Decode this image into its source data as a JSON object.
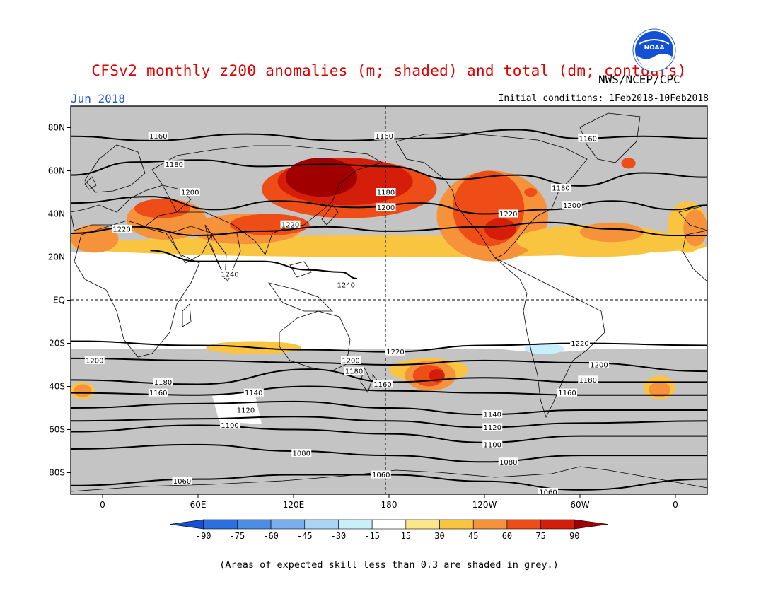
{
  "title": "CFSv2 monthly z200 anomalies (m; shaded) and total (dm; contours)",
  "agency": "NWS/NCEP/CPC",
  "logo_text": "NOAA",
  "month": "Jun 2018",
  "initial_conditions": "Initial conditions: 1Feb2018-10Feb2018",
  "footnote": "(Areas of expected skill less than 0.3 are shaded in grey.)",
  "lat_labels": [
    "80N",
    "60N",
    "40N",
    "20N",
    "EQ",
    "20S",
    "40S",
    "60S",
    "80S"
  ],
  "lon_labels": [
    "0",
    "60E",
    "120E",
    "180",
    "120W",
    "60W",
    "0"
  ],
  "colorbar": {
    "labels": [
      "-90",
      "-75",
      "-60",
      "-45",
      "-30",
      "-15",
      "15",
      "30",
      "45",
      "60",
      "75",
      "90"
    ],
    "colors": [
      "#1450d2",
      "#2c6fe0",
      "#4a8ee8",
      "#78b0ef",
      "#a8d6f4",
      "#c8f0fa",
      "#ffffff",
      "#fde68a",
      "#f9c440",
      "#f6923a",
      "#ef4d18",
      "#d41e0a",
      "#a00000"
    ]
  },
  "colors": {
    "grey_skill": "#c4c4c4",
    "land_outline": "#000000",
    "contour": "#000000"
  },
  "contours": [
    {
      "label": "1160",
      "points": [
        [
          -20,
          76
        ],
        [
          30,
          74
        ],
        [
          90,
          77
        ],
        [
          150,
          74
        ],
        [
          200,
          75
        ],
        [
          260,
          79
        ],
        [
          300,
          75
        ],
        [
          340,
          76
        ],
        [
          380,
          75
        ]
      ]
    },
    {
      "label": "1180",
      "points": [
        [
          -20,
          58
        ],
        [
          20,
          64
        ],
        [
          60,
          65
        ],
        [
          100,
          62
        ],
        [
          140,
          63
        ],
        [
          180,
          62
        ],
        [
          220,
          56
        ],
        [
          260,
          58
        ],
        [
          300,
          53
        ],
        [
          340,
          59
        ],
        [
          380,
          57
        ]
      ]
    },
    {
      "label": "1200",
      "points": [
        [
          -20,
          45
        ],
        [
          30,
          48
        ],
        [
          70,
          42
        ],
        [
          110,
          46
        ],
        [
          160,
          43
        ],
        [
          200,
          45
        ],
        [
          240,
          40
        ],
        [
          280,
          42
        ],
        [
          320,
          46
        ],
        [
          360,
          42
        ],
        [
          380,
          44
        ]
      ]
    },
    {
      "label": "1220",
      "points": [
        [
          -20,
          31
        ],
        [
          20,
          34
        ],
        [
          60,
          30
        ],
        [
          100,
          32
        ],
        [
          140,
          34
        ],
        [
          180,
          32
        ],
        [
          240,
          34
        ],
        [
          280,
          36
        ],
        [
          320,
          33
        ],
        [
          360,
          30
        ],
        [
          380,
          30
        ]
      ]
    },
    {
      "label": "1240",
      "points": [
        [
          30,
          23
        ],
        [
          60,
          18
        ],
        [
          100,
          18
        ],
        [
          130,
          14
        ],
        [
          150,
          13
        ],
        [
          160,
          10
        ]
      ]
    },
    {
      "label": "1220",
      "points": [
        [
          -20,
          -19
        ],
        [
          60,
          -21
        ],
        [
          130,
          -23
        ],
        [
          180,
          -24
        ],
        [
          240,
          -21
        ],
        [
          300,
          -20
        ],
        [
          380,
          -21
        ]
      ]
    },
    {
      "label": "1200",
      "points": [
        [
          -20,
          -27
        ],
        [
          60,
          -28
        ],
        [
          130,
          -29
        ],
        [
          180,
          -30
        ],
        [
          240,
          -28
        ],
        [
          300,
          -29
        ],
        [
          380,
          -33
        ]
      ]
    },
    {
      "label": "1180",
      "points": [
        [
          -20,
          -37
        ],
        [
          60,
          -39
        ],
        [
          130,
          -32
        ],
        [
          180,
          -38
        ],
        [
          240,
          -36
        ],
        [
          300,
          -38
        ],
        [
          380,
          -38
        ]
      ]
    },
    {
      "label": "1160",
      "points": [
        [
          -20,
          -43
        ],
        [
          60,
          -44
        ],
        [
          130,
          -40
        ],
        [
          180,
          -42
        ],
        [
          240,
          -43
        ],
        [
          300,
          -44
        ],
        [
          380,
          -44
        ]
      ]
    },
    {
      "label": "1140",
      "points": [
        [
          -20,
          -50
        ],
        [
          60,
          -48
        ],
        [
          120,
          -47
        ],
        [
          180,
          -50
        ],
        [
          240,
          -53
        ],
        [
          300,
          -51
        ],
        [
          380,
          -51
        ]
      ]
    },
    {
      "label": "1120",
      "points": [
        [
          -20,
          -56
        ],
        [
          60,
          -55
        ],
        [
          120,
          -54
        ],
        [
          180,
          -56
        ],
        [
          240,
          -59
        ],
        [
          300,
          -57
        ],
        [
          380,
          -56
        ]
      ]
    },
    {
      "label": "1100",
      "points": [
        [
          -20,
          -61
        ],
        [
          60,
          -58
        ],
        [
          120,
          -60
        ],
        [
          180,
          -62
        ],
        [
          240,
          -66
        ],
        [
          300,
          -63
        ],
        [
          380,
          -63
        ]
      ]
    },
    {
      "label": "1080",
      "points": [
        [
          -20,
          -69
        ],
        [
          60,
          -67
        ],
        [
          120,
          -70
        ],
        [
          180,
          -72
        ],
        [
          240,
          -75
        ],
        [
          300,
          -72
        ],
        [
          380,
          -72
        ]
      ]
    },
    {
      "label": "1060",
      "points": [
        [
          -20,
          -86
        ],
        [
          60,
          -83
        ],
        [
          120,
          -81
        ],
        [
          180,
          -81
        ],
        [
          240,
          -84
        ],
        [
          300,
          -88
        ],
        [
          380,
          -83
        ]
      ]
    }
  ],
  "contour_labels": [
    {
      "text": "1160",
      "lon": 35,
      "lat": 76
    },
    {
      "text": "1160",
      "lon": 177,
      "lat": 76
    },
    {
      "text": "1160",
      "lon": 305,
      "lat": 75
    },
    {
      "text": "1180",
      "lon": 45,
      "lat": 63
    },
    {
      "text": "1180",
      "lon": 178,
      "lat": 50
    },
    {
      "text": "1180",
      "lon": 288,
      "lat": 52
    },
    {
      "text": "1200",
      "lon": 55,
      "lat": 50
    },
    {
      "text": "1200",
      "lon": 178,
      "lat": 43
    },
    {
      "text": "1200",
      "lon": 295,
      "lat": 44
    },
    {
      "text": "1220",
      "lon": 12,
      "lat": 33
    },
    {
      "text": "1220",
      "lon": 118,
      "lat": 35
    },
    {
      "text": "1220",
      "lon": 255,
      "lat": 40
    },
    {
      "text": "1240",
      "lon": 80,
      "lat": 12
    },
    {
      "text": "1240",
      "lon": 153,
      "lat": 7
    },
    {
      "text": "1220",
      "lon": 184,
      "lat": -24
    },
    {
      "text": "1220",
      "lon": 300,
      "lat": -20
    },
    {
      "text": "1200",
      "lon": -5,
      "lat": -28
    },
    {
      "text": "1200",
      "lon": 156,
      "lat": -28
    },
    {
      "text": "1200",
      "lon": 312,
      "lat": -30
    },
    {
      "text": "1180",
      "lon": 158,
      "lat": -33
    },
    {
      "text": "1180",
      "lon": 38,
      "lat": -38
    },
    {
      "text": "1180",
      "lon": 305,
      "lat": -37
    },
    {
      "text": "1160",
      "lon": 35,
      "lat": -43
    },
    {
      "text": "1160",
      "lon": 176,
      "lat": -39
    },
    {
      "text": "1160",
      "lon": 292,
      "lat": -43
    },
    {
      "text": "1140",
      "lon": 95,
      "lat": -43
    },
    {
      "text": "1140",
      "lon": 245,
      "lat": -53
    },
    {
      "text": "1120",
      "lon": 90,
      "lat": -51
    },
    {
      "text": "1120",
      "lon": 245,
      "lat": -59
    },
    {
      "text": "1100",
      "lon": 80,
      "lat": -58
    },
    {
      "text": "1100",
      "lon": 245,
      "lat": -67
    },
    {
      "text": "1080",
      "lon": 125,
      "lat": -71
    },
    {
      "text": "1080",
      "lon": 255,
      "lat": -75
    },
    {
      "text": "1060",
      "lon": 175,
      "lat": -81
    },
    {
      "text": "1060",
      "lon": 50,
      "lat": -84
    },
    {
      "text": "1060",
      "lon": 280,
      "lat": -89
    }
  ],
  "anomaly_blobs": [
    {
      "value": 30,
      "lon": [
        -20,
        380
      ],
      "lat": [
        20,
        30
      ]
    },
    {
      "value": 45,
      "lon": [
        -20,
        10
      ],
      "lat": [
        22,
        35
      ]
    },
    {
      "value": 30,
      "lon": [
        355,
        380
      ],
      "lat": [
        22,
        46
      ]
    },
    {
      "value": 45,
      "lon": [
        365,
        380
      ],
      "lat": [
        25,
        42
      ]
    },
    {
      "value": 45,
      "lon": [
        15,
        65
      ],
      "lat": [
        28,
        47
      ]
    },
    {
      "value": 60,
      "lon": [
        20,
        55
      ],
      "lat": [
        38,
        47
      ]
    },
    {
      "value": 45,
      "lon": [
        55,
        125
      ],
      "lat": [
        26,
        40
      ]
    },
    {
      "value": 60,
      "lon": [
        80,
        130
      ],
      "lat": [
        30,
        40
      ]
    },
    {
      "value": 60,
      "lon": [
        100,
        210
      ],
      "lat": [
        38,
        65
      ]
    },
    {
      "value": 75,
      "lon": [
        110,
        195
      ],
      "lat": [
        44,
        66
      ]
    },
    {
      "value": 90,
      "lon": [
        115,
        160
      ],
      "lat": [
        48,
        66
      ]
    },
    {
      "value": 45,
      "lon": [
        210,
        280
      ],
      "lat": [
        18,
        60
      ]
    },
    {
      "value": 60,
      "lon": [
        220,
        265
      ],
      "lat": [
        25,
        60
      ]
    },
    {
      "value": 75,
      "lon": [
        240,
        260
      ],
      "lat": [
        28,
        38
      ]
    },
    {
      "value": 30,
      "lon": [
        260,
        360
      ],
      "lat": [
        20,
        35
      ]
    },
    {
      "value": 45,
      "lon": [
        300,
        340
      ],
      "lat": [
        27,
        36
      ]
    },
    {
      "value": 60,
      "lon": [
        265,
        273
      ],
      "lat": [
        48,
        52
      ]
    },
    {
      "value": 60,
      "lon": [
        326,
        335
      ],
      "lat": [
        61,
        66
      ]
    },
    {
      "value": 30,
      "lon": [
        65,
        125
      ],
      "lat": [
        -25,
        -19
      ]
    },
    {
      "value": 30,
      "lon": [
        180,
        230
      ],
      "lat": [
        -38,
        -27
      ]
    },
    {
      "value": 45,
      "lon": [
        190,
        222
      ],
      "lat": [
        -42,
        -28
      ]
    },
    {
      "value": 60,
      "lon": [
        195,
        215
      ],
      "lat": [
        -40,
        -30
      ]
    },
    {
      "value": 75,
      "lon": [
        205,
        215
      ],
      "lat": [
        -38,
        -32
      ]
    },
    {
      "value": 30,
      "lon": [
        -20,
        -5
      ],
      "lat": [
        -46,
        -38
      ]
    },
    {
      "value": 45,
      "lon": [
        -18,
        -7
      ],
      "lat": [
        -45,
        -39
      ]
    },
    {
      "value": 30,
      "lon": [
        340,
        360
      ],
      "lat": [
        -46,
        -35
      ]
    },
    {
      "value": 45,
      "lon": [
        343,
        357
      ],
      "lat": [
        -45,
        -38
      ]
    },
    {
      "value": -15,
      "lon": [
        220,
        340
      ],
      "lat": [
        -24,
        -4
      ]
    },
    {
      "value": -15,
      "lon": [
        -20,
        -5
      ],
      "lat": [
        -20,
        0
      ]
    },
    {
      "value": -15,
      "lon": [
        330,
        350
      ],
      "lat": [
        0,
        8
      ]
    },
    {
      "value": -30,
      "lon": [
        265,
        290
      ],
      "lat": [
        -25,
        -20
      ]
    }
  ]
}
